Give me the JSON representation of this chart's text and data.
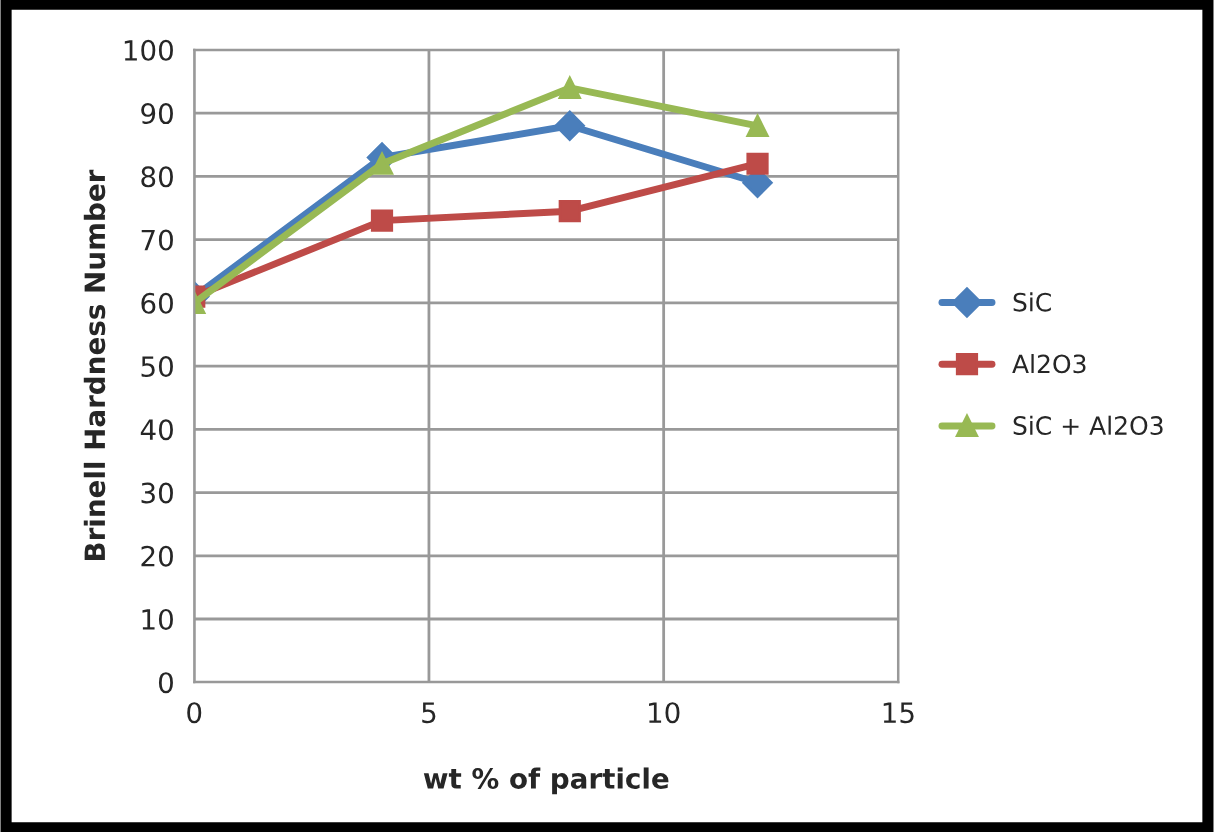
{
  "chart_data": {
    "type": "line",
    "xlabel": "wt % of particle",
    "ylabel": "Brinell Hardness Number",
    "x": [
      0,
      4,
      8,
      12
    ],
    "series": [
      {
        "name": "SiC",
        "color": "#4a7ebb",
        "values": [
          61,
          83,
          88,
          79
        ],
        "marker": "diamond"
      },
      {
        "name": "Al2O3",
        "color": "#be4b48",
        "values": [
          61,
          73,
          74.5,
          82
        ],
        "marker": "square"
      },
      {
        "name": "SiC + Al2O3",
        "color": "#98b954",
        "values": [
          60,
          82,
          94,
          88
        ],
        "marker": "triangle"
      }
    ],
    "xlim": [
      0,
      15
    ],
    "xticks": [
      0,
      5,
      10,
      15
    ],
    "ylim": [
      0,
      100
    ],
    "yticks": [
      0,
      10,
      20,
      30,
      40,
      50,
      60,
      70,
      80,
      90,
      100
    ],
    "grid": true,
    "legend": "right",
    "line_style": "solid"
  }
}
